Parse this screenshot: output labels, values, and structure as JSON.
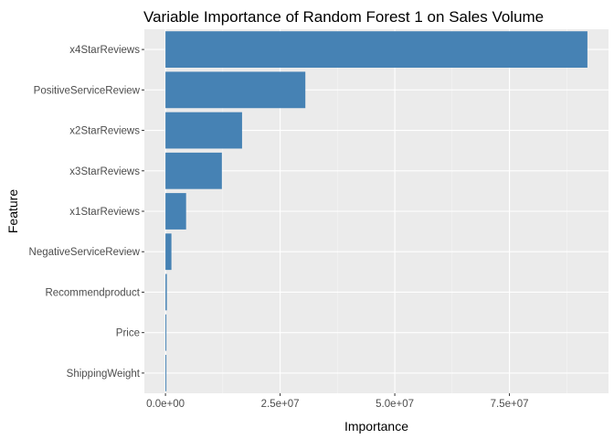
{
  "chart_data": {
    "type": "bar",
    "orientation": "horizontal",
    "title": "Variable Importance of Random Forest 1 on Sales Volume",
    "xlabel": "Importance",
    "ylabel": "Feature",
    "categories": [
      "x4StarReviews",
      "PositiveServiceReview",
      "x2StarReviews",
      "x3StarReviews",
      "x1StarReviews",
      "NegativeServiceReview",
      "Recommendproduct",
      "Price",
      "ShippingWeight"
    ],
    "values": [
      92000000,
      30500000,
      16700000,
      12300000,
      4500000,
      1300000,
      300000,
      200000,
      150000
    ],
    "xlim": [
      -4600000,
      96600000
    ],
    "x_ticks": [
      0,
      25000000,
      50000000,
      75000000
    ],
    "x_tick_labels": [
      "0.0e+00",
      "2.5e+07",
      "5.0e+07",
      "7.5e+07"
    ],
    "x_minor_ticks": [
      12500000,
      37500000,
      62500000,
      87500000
    ],
    "grid": true,
    "colors": {
      "bar": "#4682b4",
      "panel_bg": "#ebebeb",
      "grid_major": "#ffffff",
      "grid_minor": "#f5f5f5",
      "tick_mark": "#333333"
    }
  }
}
